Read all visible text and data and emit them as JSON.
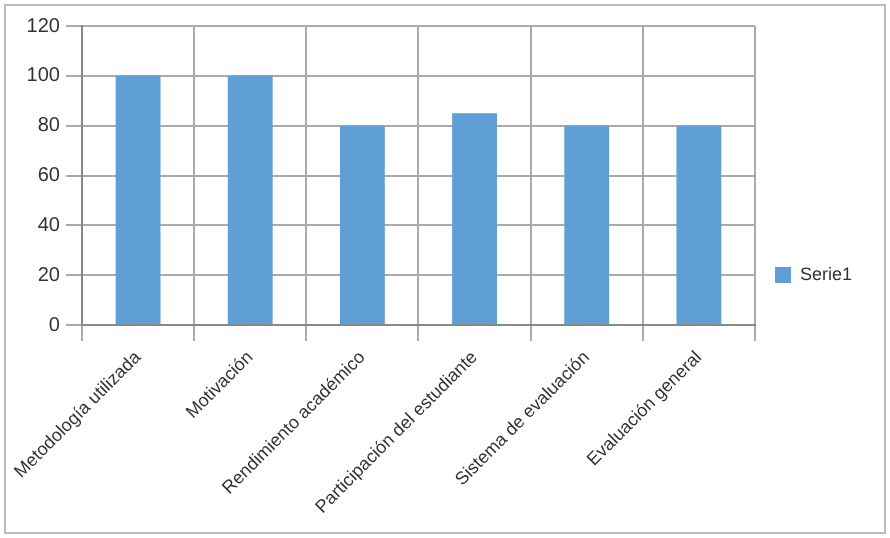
{
  "chart_data": {
    "type": "bar",
    "categories": [
      "Metodología utilizada",
      "Motivación",
      "Rendimiento académico",
      "Participación del estudiante",
      "Sistema de evaluación",
      "Evaluación general"
    ],
    "series": [
      {
        "name": "Serie1",
        "color": "#5f9fd6",
        "values": [
          100,
          100,
          80,
          85,
          80,
          80
        ]
      }
    ],
    "ylim": [
      0,
      120
    ],
    "yticks": [
      0,
      20,
      40,
      60,
      80,
      100,
      120
    ],
    "grid": true,
    "legend": "right"
  }
}
